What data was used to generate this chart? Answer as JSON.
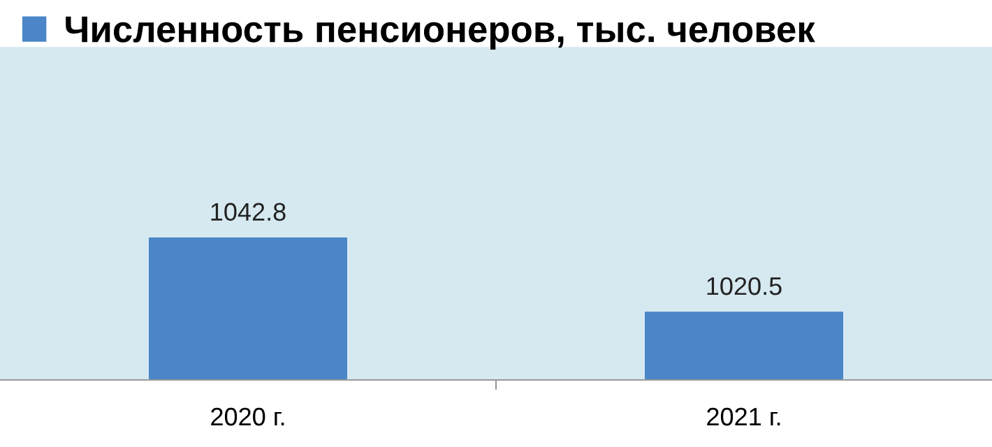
{
  "chart_data": {
    "type": "bar",
    "categories": [
      "2020 г.",
      "2021 г."
    ],
    "series": [
      {
        "name": "Численность пенсионеров, тыс. человек",
        "color": "#4a86c8",
        "values": [
          1042.8,
          1020.5
        ]
      }
    ],
    "ylim": [
      1000,
      1100
    ],
    "tick_labels": "x",
    "data_labels": true,
    "legend": "top left"
  }
}
